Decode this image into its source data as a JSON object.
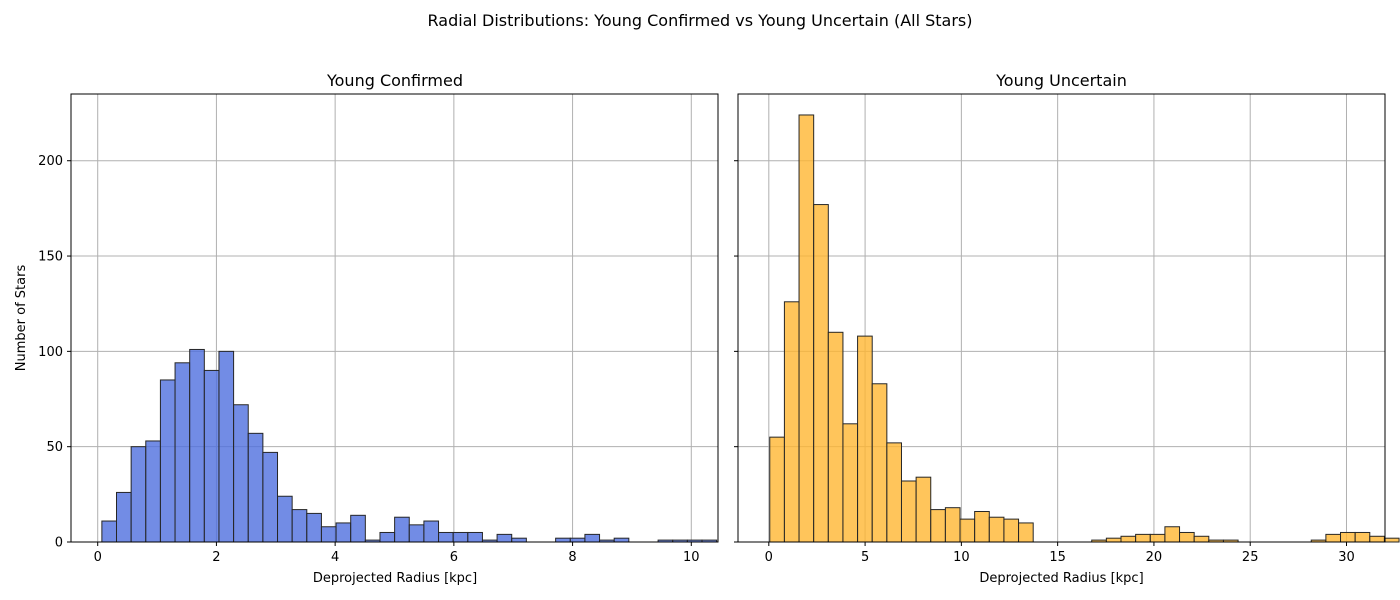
{
  "figure": {
    "suptitle": "Radial Distributions: Young Confirmed vs Young Uncertain (All Stars)"
  },
  "chart_data": [
    {
      "type": "bar",
      "title": "Young Confirmed",
      "xlabel": "Deprojected Radius [kpc]",
      "ylabel": "Number of Stars",
      "xlim": [
        -0.45,
        10.45
      ],
      "ylim": [
        0,
        235
      ],
      "xticks": [
        0,
        2,
        4,
        6,
        8,
        10
      ],
      "yticks": [
        0,
        50,
        100,
        150,
        200
      ],
      "grid": true,
      "color": "#4f6fdf",
      "bin_start": 0.07,
      "bin_width": 0.2466,
      "values": [
        11,
        26,
        50,
        53,
        85,
        94,
        101,
        90,
        100,
        72,
        57,
        47,
        24,
        17,
        15,
        8,
        10,
        14,
        1,
        5,
        13,
        9,
        11,
        5,
        5,
        5,
        1,
        4,
        2,
        0,
        0,
        2,
        2,
        4,
        1,
        2,
        0,
        0,
        1,
        1,
        1,
        1
      ]
    },
    {
      "type": "bar",
      "title": "Young Uncertain",
      "xlabel": "Deprojected Radius [kpc]",
      "ylabel": "",
      "xlim": [
        -1.6,
        32.0
      ],
      "ylim": [
        0,
        235
      ],
      "xticks": [
        0,
        5,
        10,
        15,
        20,
        25,
        30
      ],
      "yticks": [
        0,
        50,
        100,
        150,
        200
      ],
      "grid": true,
      "color": "#ffb732",
      "bin_start": 0.05,
      "bin_width": 0.76,
      "values": [
        55,
        126,
        224,
        177,
        110,
        62,
        108,
        83,
        52,
        32,
        34,
        17,
        18,
        12,
        16,
        13,
        12,
        10,
        0,
        0,
        0,
        0,
        1,
        2,
        3,
        4,
        4,
        8,
        5,
        3,
        1,
        1,
        0,
        0,
        0,
        0,
        0,
        1,
        4,
        5,
        5,
        3,
        2
      ]
    }
  ]
}
